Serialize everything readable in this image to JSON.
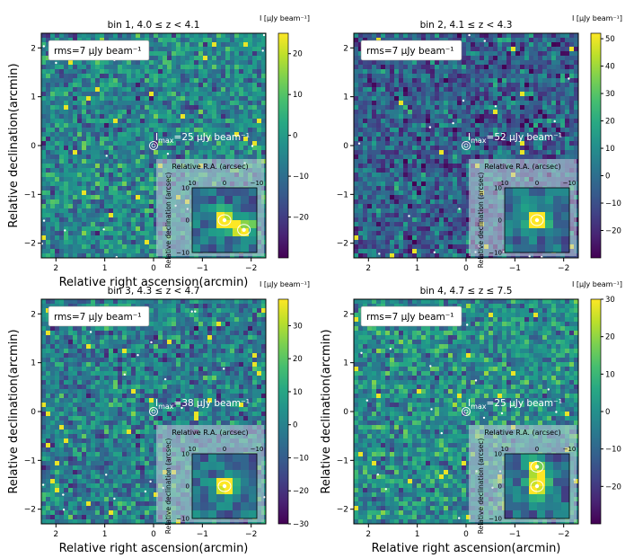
{
  "chart_data": [
    {
      "type": "heatmap",
      "title": "bin 1, 4.0 ≤ z < 4.1",
      "xlabel": "Relative right ascension(arcmin)",
      "ylabel": "Relative declination(arcmin)",
      "xlim": [
        2.3,
        -2.3
      ],
      "ylim": [
        -2.3,
        2.3
      ],
      "x_ticks": [
        "2",
        "1",
        "0",
        "−1",
        "−2"
      ],
      "y_ticks": [
        "2",
        "1",
        "0",
        "−1",
        "−2"
      ],
      "rms_label": "rms=7  μJy beam⁻¹",
      "imax_label": "I",
      "imax_sub": "max",
      "imax_value": "=25  μJy beam⁻¹",
      "colorbar_label": "I [μJy beam⁻¹]",
      "colorbar_ticks": [
        "20",
        "10",
        "0",
        "−10",
        "−20"
      ],
      "colorbar_range": [
        -30,
        25
      ],
      "inset": {
        "title": "Relative R.A. (arcsec)",
        "ylabel": "Relative declination (arcsec)",
        "x_ticks": [
          "10",
          "0",
          "−10"
        ],
        "y_ticks": [
          "10",
          "0",
          "−10"
        ],
        "peaks": [
          [
            0,
            0,
            0.9
          ],
          [
            -6,
            -3,
            0.85
          ]
        ]
      },
      "background_level": 0.45
    },
    {
      "type": "heatmap",
      "title": "bin 2, 4.1 ≤ z < 4.3",
      "xlabel": "",
      "ylabel": "",
      "xlim": [
        2.3,
        -2.3
      ],
      "ylim": [
        -2.3,
        2.3
      ],
      "x_ticks": [
        "2",
        "1",
        "0",
        "−1",
        "−2"
      ],
      "y_ticks": [
        "2",
        "1",
        "0",
        "−1",
        "−2"
      ],
      "rms_label": "rms=7  μJy beam⁻¹",
      "imax_label": "I",
      "imax_sub": "max",
      "imax_value": "=52  μJy beam⁻¹",
      "colorbar_label": "I [μJy beam⁻¹]",
      "colorbar_ticks": [
        "50",
        "40",
        "30",
        "20",
        "10",
        "0",
        "−10",
        "−20"
      ],
      "colorbar_range": [
        -30,
        52
      ],
      "inset": {
        "title": "Relative R.A. (arcsec)",
        "ylabel": "Relative declination (arcsec)",
        "x_ticks": [
          "10",
          "0",
          "−10"
        ],
        "y_ticks": [
          "10",
          "0",
          "−10"
        ],
        "peaks": [
          [
            0,
            0,
            1.0
          ]
        ]
      },
      "background_level": 0.3
    },
    {
      "type": "heatmap",
      "title": "bin 3, 4.3 ≤ z < 4.7",
      "xlabel": "Relative right ascension(arcmin)",
      "ylabel": "Relative declination(arcmin)",
      "xlim": [
        2.3,
        -2.3
      ],
      "ylim": [
        -2.3,
        2.3
      ],
      "x_ticks": [
        "2",
        "1",
        "0",
        "−1",
        "−2"
      ],
      "y_ticks": [
        "2",
        "1",
        "0",
        "−1",
        "−2"
      ],
      "rms_label": "rms=7  μJy beam⁻¹",
      "imax_label": "I",
      "imax_sub": "max",
      "imax_value": "=38  μJy beam⁻¹",
      "colorbar_label": "I [μJy beam⁻¹]",
      "colorbar_ticks": [
        "30",
        "20",
        "10",
        "0",
        "−10",
        "−20",
        "−30"
      ],
      "colorbar_range": [
        -30,
        38
      ],
      "inset": {
        "title": "Relative R.A. (arcsec)",
        "ylabel": "Relative declination (arcsec)",
        "x_ticks": [
          "10",
          "0",
          "−10"
        ],
        "y_ticks": [
          "10",
          "0",
          "−10"
        ],
        "peaks": [
          [
            0,
            0,
            1.0
          ]
        ]
      },
      "background_level": 0.42
    },
    {
      "type": "heatmap",
      "title": "bin 4, 4.7 ≤ z ≤ 7.5",
      "xlabel": "Relative right ascension(arcmin)",
      "ylabel": "Relative declination(arcmin)",
      "xlim": [
        2.3,
        -2.3
      ],
      "ylim": [
        -2.3,
        2.3
      ],
      "x_ticks": [
        "2",
        "1",
        "0",
        "−1",
        "−2"
      ],
      "y_ticks": [
        "2",
        "1",
        "0",
        "−1",
        "−2"
      ],
      "rms_label": "rms=7  μJy beam⁻¹",
      "imax_label": "I",
      "imax_sub": "max",
      "imax_value": "=25  μJy beam⁻¹",
      "colorbar_label": "I [μJy beam⁻¹]",
      "colorbar_ticks": [
        "30",
        "20",
        "10",
        "0",
        "−10",
        "−20"
      ],
      "colorbar_range": [
        -30,
        30
      ],
      "inset": {
        "title": "Relative R.A. (arcsec)",
        "ylabel": "Relative declination (arcsec)",
        "x_ticks": [
          "10",
          "0",
          "−10"
        ],
        "y_ticks": [
          "10",
          "0",
          "−10"
        ],
        "peaks": [
          [
            0,
            0,
            0.95
          ],
          [
            0,
            6,
            0.7
          ]
        ]
      },
      "background_level": 0.48
    }
  ]
}
